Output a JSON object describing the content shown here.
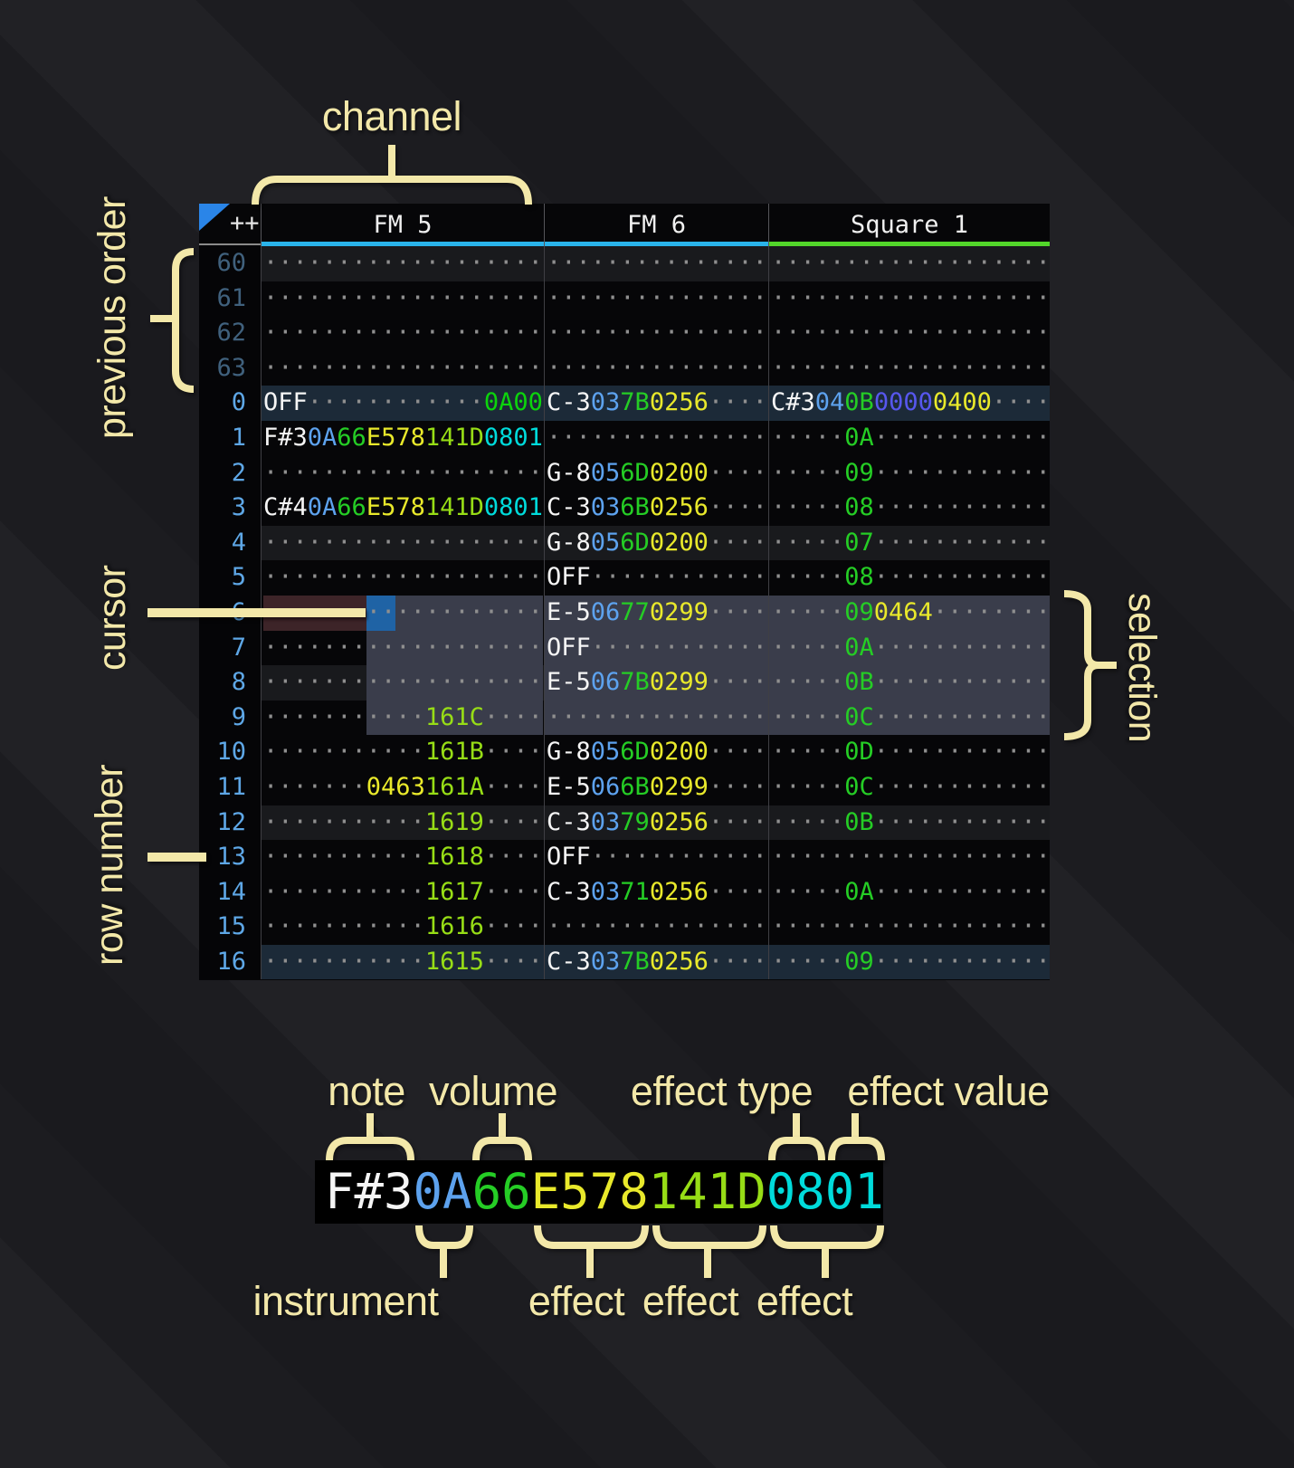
{
  "annotations": {
    "channel": "channel",
    "previous_order": "previous order",
    "cursor": "cursor",
    "row_number": "row number",
    "selection": "selection",
    "note": "note",
    "volume": "volume",
    "effect_type": "effect type",
    "effect_value": "effect value",
    "instrument": "instrument",
    "effect_a": "effect",
    "effect_b": "effect",
    "effect_c": "effect"
  },
  "colors": {
    "annotation": "#f3e8a9",
    "note": "#f5f5f5",
    "instrument": "#5da2ee",
    "volume": "#25cd25",
    "fx_yellow": "#e9e92b",
    "fx_lime": "#97dd16",
    "fx_cyan": "#00dbdb",
    "fx_indigo": "#5757ee",
    "fx_green": "#0cd40c",
    "dot": "#8f8f8f",
    "row_num": "#5ea7e6",
    "row_num_prev": "#40617d",
    "underline_fm": "#2ab3ea",
    "underline_square": "#52d62a",
    "bg_selection": "#3a3d4b",
    "bg_cursor": "#1f63a5",
    "bg_cursor_row": "#3d2428",
    "bg_hl4": "#191a1d",
    "bg_order": "#1c2a38",
    "triangle": "#2a85e8"
  },
  "header": {
    "corner": "++",
    "channels": [
      {
        "id": "fm5",
        "name": "FM 5",
        "underline": "#2ab3ea"
      },
      {
        "id": "fm6",
        "name": "FM 6",
        "underline": "#2ab3ea"
      },
      {
        "id": "sq",
        "name": "Square 1",
        "underline": "#52d62a"
      }
    ]
  },
  "detail": {
    "segments": [
      {
        "t": "F#3",
        "c": "n"
      },
      {
        "t": "0A",
        "c": "i"
      },
      {
        "t": "66",
        "c": "v"
      },
      {
        "t": "E578",
        "c": "y"
      },
      {
        "t": "141D",
        "c": "l"
      },
      {
        "t": "0801",
        "c": "c"
      }
    ]
  },
  "rows": [
    {
      "n": "60",
      "prev": true,
      "bg": "hl4",
      "fm5": [
        {
          "d": 19
        }
      ],
      "fm6": [
        {
          "d": 15
        }
      ],
      "sq": [
        {
          "d": 19
        }
      ]
    },
    {
      "n": "61",
      "prev": true,
      "fm5": [
        {
          "d": 19
        }
      ],
      "fm6": [
        {
          "d": 15
        }
      ],
      "sq": [
        {
          "d": 19
        }
      ]
    },
    {
      "n": "62",
      "prev": true,
      "fm5": [
        {
          "d": 19
        }
      ],
      "fm6": [
        {
          "d": 15
        }
      ],
      "sq": [
        {
          "d": 19
        }
      ]
    },
    {
      "n": "63",
      "prev": true,
      "fm5": [
        {
          "d": 19
        }
      ],
      "fm6": [
        {
          "d": 15
        }
      ],
      "sq": [
        {
          "d": 19
        }
      ]
    },
    {
      "n": "0",
      "bg": "order",
      "fm5": [
        {
          "t": "OFF",
          "c": "n"
        },
        {
          "d": 12
        },
        {
          "t": "0A00",
          "c": "g"
        }
      ],
      "fm6": [
        {
          "t": "C-3",
          "c": "n"
        },
        {
          "t": "03",
          "c": "i"
        },
        {
          "t": "7B",
          "c": "v"
        },
        {
          "t": "0256",
          "c": "y"
        },
        {
          "d": 4
        }
      ],
      "sq": [
        {
          "t": "C#3",
          "c": "n"
        },
        {
          "t": "04",
          "c": "i"
        },
        {
          "t": "0B",
          "c": "v"
        },
        {
          "t": "0000",
          "c": "ind"
        },
        {
          "t": "0400",
          "c": "y"
        },
        {
          "d": 4
        }
      ]
    },
    {
      "n": "1",
      "fm5": [
        {
          "t": "F#3",
          "c": "n"
        },
        {
          "t": "0A",
          "c": "i"
        },
        {
          "t": "66",
          "c": "v"
        },
        {
          "t": "E578",
          "c": "y"
        },
        {
          "t": "141D",
          "c": "l"
        },
        {
          "t": "0801",
          "c": "c"
        }
      ],
      "fm6": [
        {
          "d": 15
        }
      ],
      "sq": [
        {
          "d": 5
        },
        {
          "t": "0A",
          "c": "v"
        },
        {
          "d": 12
        }
      ]
    },
    {
      "n": "2",
      "fm5": [
        {
          "d": 19
        }
      ],
      "fm6": [
        {
          "t": "G-8",
          "c": "n"
        },
        {
          "t": "05",
          "c": "i"
        },
        {
          "t": "6D",
          "c": "v"
        },
        {
          "t": "0200",
          "c": "y"
        },
        {
          "d": 4
        }
      ],
      "sq": [
        {
          "d": 5
        },
        {
          "t": "09",
          "c": "v"
        },
        {
          "d": 12
        }
      ]
    },
    {
      "n": "3",
      "fm5": [
        {
          "t": "C#4",
          "c": "n"
        },
        {
          "t": "0A",
          "c": "i"
        },
        {
          "t": "66",
          "c": "v"
        },
        {
          "t": "E578",
          "c": "y"
        },
        {
          "t": "141D",
          "c": "l"
        },
        {
          "t": "0801",
          "c": "c"
        }
      ],
      "fm6": [
        {
          "t": "C-3",
          "c": "n"
        },
        {
          "t": "03",
          "c": "i"
        },
        {
          "t": "6B",
          "c": "v"
        },
        {
          "t": "0256",
          "c": "y"
        },
        {
          "d": 4
        }
      ],
      "sq": [
        {
          "d": 5
        },
        {
          "t": "08",
          "c": "v"
        },
        {
          "d": 12
        }
      ]
    },
    {
      "n": "4",
      "bg": "hl4",
      "fm5": [
        {
          "d": 19
        }
      ],
      "fm6": [
        {
          "t": "G-8",
          "c": "n"
        },
        {
          "t": "05",
          "c": "i"
        },
        {
          "t": "6D",
          "c": "v"
        },
        {
          "t": "0200",
          "c": "y"
        },
        {
          "d": 4
        }
      ],
      "sq": [
        {
          "d": 5
        },
        {
          "t": "07",
          "c": "v"
        },
        {
          "d": 12
        }
      ]
    },
    {
      "n": "5",
      "fm5": [
        {
          "d": 19
        }
      ],
      "fm6": [
        {
          "t": "OFF",
          "c": "n"
        },
        {
          "d": 12
        }
      ],
      "sq": [
        {
          "d": 5
        },
        {
          "t": "08",
          "c": "v"
        },
        {
          "d": 12
        }
      ]
    },
    {
      "n": "6",
      "fm5": [
        {
          "d": 7,
          "bg": "currow"
        },
        {
          "d": 2,
          "bg": "cursor"
        },
        {
          "d": 10,
          "bg": "sel"
        }
      ],
      "fm6bg": "sel",
      "fm6": [
        {
          "t": "E-5",
          "c": "n"
        },
        {
          "t": "06",
          "c": "i"
        },
        {
          "t": "77",
          "c": "v"
        },
        {
          "t": "0299",
          "c": "y"
        },
        {
          "d": 4
        }
      ],
      "sqbg": "sel",
      "sq": [
        {
          "d": 5
        },
        {
          "t": "09",
          "c": "v"
        },
        {
          "t": "0464",
          "c": "y"
        },
        {
          "d": 8
        }
      ]
    },
    {
      "n": "7",
      "fm5": [
        {
          "d": 7
        },
        {
          "d": 12,
          "bg": "sel"
        }
      ],
      "fm6bg": "sel",
      "fm6": [
        {
          "t": "OFF",
          "c": "n"
        },
        {
          "d": 12
        }
      ],
      "sqbg": "sel",
      "sq": [
        {
          "d": 5
        },
        {
          "t": "0A",
          "c": "v"
        },
        {
          "d": 12
        }
      ]
    },
    {
      "n": "8",
      "bg": "hl4",
      "fm5": [
        {
          "d": 7
        },
        {
          "d": 12,
          "bg": "sel"
        }
      ],
      "fm6bg": "sel",
      "fm6": [
        {
          "t": "E-5",
          "c": "n"
        },
        {
          "t": "06",
          "c": "i"
        },
        {
          "t": "7B",
          "c": "v"
        },
        {
          "t": "0299",
          "c": "y"
        },
        {
          "d": 4
        }
      ],
      "sqbg": "sel",
      "sq": [
        {
          "d": 5
        },
        {
          "t": "0B",
          "c": "v"
        },
        {
          "d": 12
        }
      ]
    },
    {
      "n": "9",
      "fm5": [
        {
          "d": 7
        },
        {
          "d": 4,
          "bg": "sel"
        },
        {
          "t": "161C",
          "c": "l",
          "bg": "sel"
        },
        {
          "d": 4,
          "bg": "sel"
        }
      ],
      "fm6bg": "sel",
      "fm6": [
        {
          "d": 15
        }
      ],
      "sqbg": "sel",
      "sq": [
        {
          "d": 5
        },
        {
          "t": "0C",
          "c": "v"
        },
        {
          "d": 12
        }
      ]
    },
    {
      "n": "10",
      "fm5": [
        {
          "d": 11
        },
        {
          "t": "161B",
          "c": "l"
        },
        {
          "d": 4
        }
      ],
      "fm6": [
        {
          "t": "G-8",
          "c": "n"
        },
        {
          "t": "05",
          "c": "i"
        },
        {
          "t": "6D",
          "c": "v"
        },
        {
          "t": "0200",
          "c": "y"
        },
        {
          "d": 4
        }
      ],
      "sq": [
        {
          "d": 5
        },
        {
          "t": "0D",
          "c": "v"
        },
        {
          "d": 12
        }
      ]
    },
    {
      "n": "11",
      "fm5": [
        {
          "d": 7
        },
        {
          "t": "0463",
          "c": "y"
        },
        {
          "t": "161A",
          "c": "l"
        },
        {
          "d": 4
        }
      ],
      "fm6": [
        {
          "t": "E-5",
          "c": "n"
        },
        {
          "t": "06",
          "c": "i"
        },
        {
          "t": "6B",
          "c": "v"
        },
        {
          "t": "0299",
          "c": "y"
        },
        {
          "d": 4
        }
      ],
      "sq": [
        {
          "d": 5
        },
        {
          "t": "0C",
          "c": "v"
        },
        {
          "d": 12
        }
      ]
    },
    {
      "n": "12",
      "bg": "hl4",
      "fm5": [
        {
          "d": 11
        },
        {
          "t": "1619",
          "c": "l"
        },
        {
          "d": 4
        }
      ],
      "fm6": [
        {
          "t": "C-3",
          "c": "n"
        },
        {
          "t": "03",
          "c": "i"
        },
        {
          "t": "79",
          "c": "v"
        },
        {
          "t": "0256",
          "c": "y"
        },
        {
          "d": 4
        }
      ],
      "sq": [
        {
          "d": 5
        },
        {
          "t": "0B",
          "c": "v"
        },
        {
          "d": 12
        }
      ]
    },
    {
      "n": "13",
      "fm5": [
        {
          "d": 11
        },
        {
          "t": "1618",
          "c": "l"
        },
        {
          "d": 4
        }
      ],
      "fm6": [
        {
          "t": "OFF",
          "c": "n"
        },
        {
          "d": 12
        }
      ],
      "sq": [
        {
          "d": 19
        }
      ]
    },
    {
      "n": "14",
      "fm5": [
        {
          "d": 11
        },
        {
          "t": "1617",
          "c": "l"
        },
        {
          "d": 4
        }
      ],
      "fm6": [
        {
          "t": "C-3",
          "c": "n"
        },
        {
          "t": "03",
          "c": "i"
        },
        {
          "t": "71",
          "c": "v"
        },
        {
          "t": "0256",
          "c": "y"
        },
        {
          "d": 4
        }
      ],
      "sq": [
        {
          "d": 5
        },
        {
          "t": "0A",
          "c": "v"
        },
        {
          "d": 12
        }
      ]
    },
    {
      "n": "15",
      "fm5": [
        {
          "d": 11
        },
        {
          "t": "1616",
          "c": "l"
        },
        {
          "d": 4
        }
      ],
      "fm6": [
        {
          "d": 15
        }
      ],
      "sq": [
        {
          "d": 19
        }
      ]
    },
    {
      "n": "16",
      "bg": "order",
      "fm5": [
        {
          "d": 11
        },
        {
          "t": "1615",
          "c": "l"
        },
        {
          "d": 4
        }
      ],
      "fm6": [
        {
          "t": "C-3",
          "c": "n"
        },
        {
          "t": "03",
          "c": "i"
        },
        {
          "t": "7B",
          "c": "v"
        },
        {
          "t": "0256",
          "c": "y"
        },
        {
          "d": 4
        }
      ],
      "sq": [
        {
          "d": 5
        },
        {
          "t": "09",
          "c": "v"
        },
        {
          "d": 12
        }
      ]
    }
  ]
}
